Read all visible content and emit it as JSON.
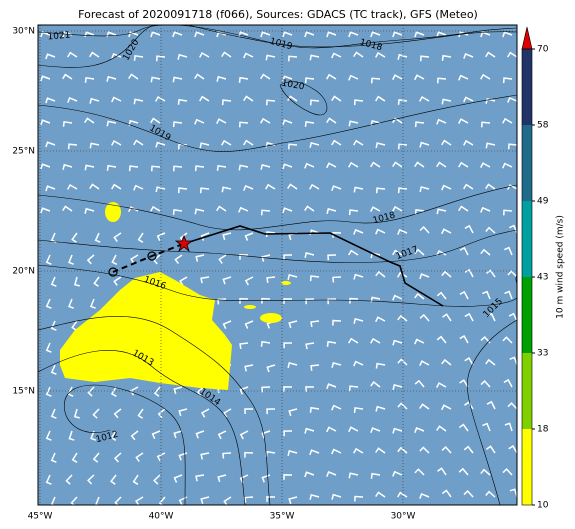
{
  "title": "Forecast of 2020091718 (f066), Sources: GDACS (TC track), GFS (Meteo)",
  "map": {
    "x_ticks": [
      "45°W",
      "40°W",
      "35°W",
      "30°W"
    ],
    "y_ticks": [
      "30°N",
      "25°N",
      "20°N",
      "15°N"
    ],
    "isobar_labels": [
      "1021",
      "1020",
      "1019",
      "1018",
      "1020",
      "1019",
      "1018",
      "1017",
      "1016",
      "1015",
      "1013",
      "1014",
      "1012"
    ]
  },
  "colorbar": {
    "label": "10 m wind speed (m/s)",
    "ticks": [
      10,
      18,
      33,
      43,
      49,
      58,
      70
    ],
    "colors": [
      "#ffff00",
      "#80d000",
      "#00a000",
      "#00a0a0",
      "#206a8a",
      "#203468"
    ],
    "extend_color": "#e00000"
  }
}
